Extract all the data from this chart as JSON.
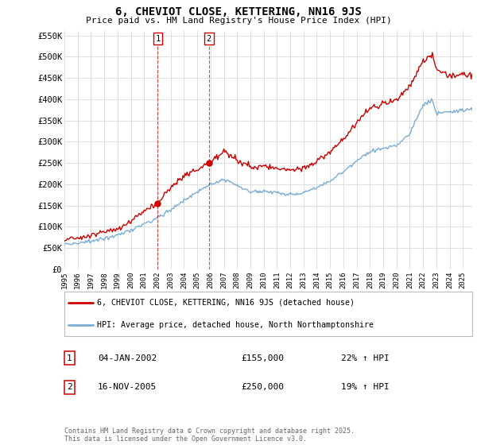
{
  "title": "6, CHEVIOT CLOSE, KETTERING, NN16 9JS",
  "subtitle": "Price paid vs. HM Land Registry's House Price Index (HPI)",
  "ylabel_ticks": [
    "£0",
    "£50K",
    "£100K",
    "£150K",
    "£200K",
    "£250K",
    "£300K",
    "£350K",
    "£400K",
    "£450K",
    "£500K",
    "£550K"
  ],
  "ytick_vals": [
    0,
    50000,
    100000,
    150000,
    200000,
    250000,
    300000,
    350000,
    400000,
    450000,
    500000,
    550000
  ],
  "ylim": [
    0,
    560000
  ],
  "xlim_start": 1995.0,
  "xlim_end": 2025.7,
  "xtick_years": [
    1995,
    1996,
    1997,
    1998,
    1999,
    2000,
    2001,
    2002,
    2003,
    2004,
    2005,
    2006,
    2007,
    2008,
    2009,
    2010,
    2011,
    2012,
    2013,
    2014,
    2015,
    2016,
    2017,
    2018,
    2019,
    2020,
    2021,
    2022,
    2023,
    2024,
    2025
  ],
  "sale1_x": 2002.03,
  "sale1_y": 155000,
  "sale2_x": 2005.88,
  "sale2_y": 250000,
  "color_red": "#cc0000",
  "color_blue": "#7aadd4",
  "background_color": "#ffffff",
  "grid_color": "#dddddd",
  "legend_line1": "6, CHEVIOT CLOSE, KETTERING, NN16 9JS (detached house)",
  "legend_line2": "HPI: Average price, detached house, North Northamptonshire",
  "annotation1_date": "04-JAN-2002",
  "annotation1_price": "£155,000",
  "annotation1_hpi": "22% ↑ HPI",
  "annotation2_date": "16-NOV-2005",
  "annotation2_price": "£250,000",
  "annotation2_hpi": "19% ↑ HPI",
  "footer": "Contains HM Land Registry data © Crown copyright and database right 2025.\nThis data is licensed under the Open Government Licence v3.0."
}
